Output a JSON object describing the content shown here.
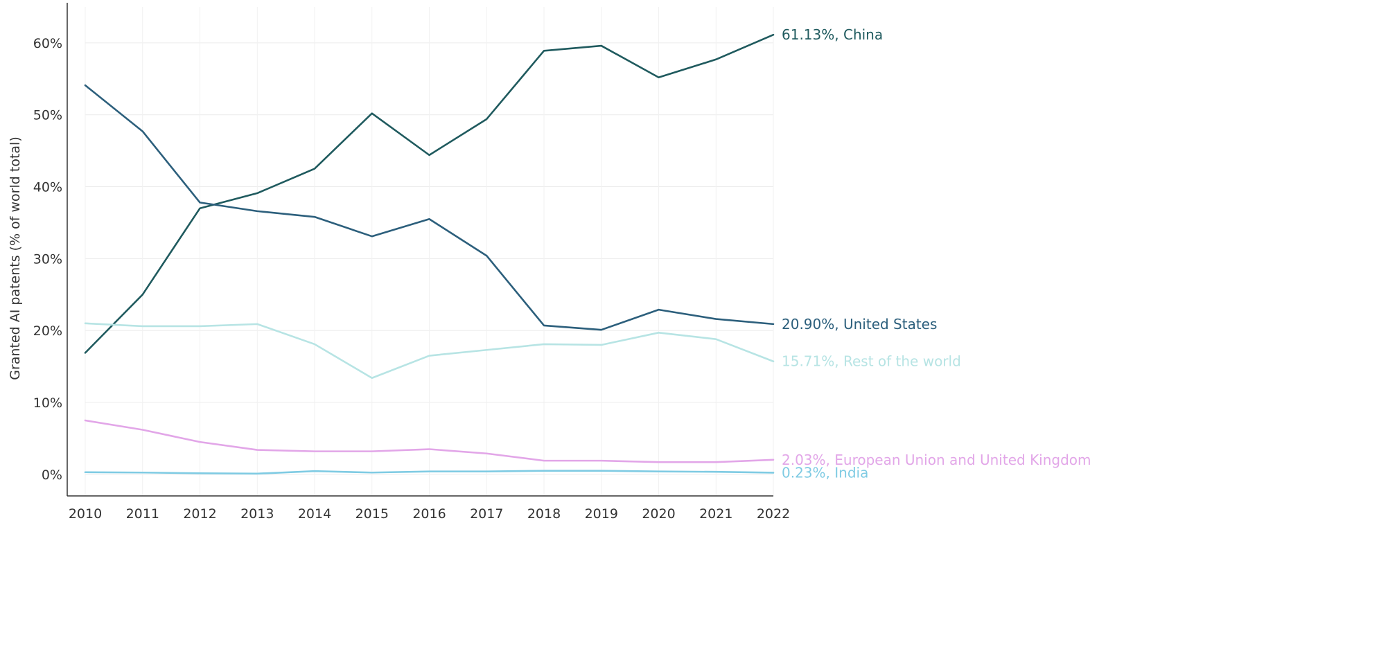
{
  "chart_data": {
    "type": "line",
    "ylabel": "Granted AI patents (% of world total)",
    "xlabel": "",
    "x": [
      "2010",
      "2011",
      "2012",
      "2013",
      "2014",
      "2015",
      "2016",
      "2017",
      "2018",
      "2019",
      "2020",
      "2021",
      "2022"
    ],
    "ylim": [
      -3,
      65
    ],
    "yticks": [
      0,
      10,
      20,
      30,
      40,
      50,
      60
    ],
    "ytick_labels": [
      "0%",
      "10%",
      "20%",
      "30%",
      "40%",
      "50%",
      "60%"
    ],
    "grid": "horizontal and vertical, light",
    "legend": "end-of-line labels on the right",
    "series": [
      {
        "name": "China",
        "end_label": "61.13%, China",
        "color": "#1f5a5e",
        "values": [
          16.9,
          25.0,
          37.0,
          39.1,
          42.5,
          50.2,
          44.4,
          49.4,
          58.9,
          59.6,
          55.2,
          57.7,
          61.13
        ]
      },
      {
        "name": "United States",
        "end_label": "20.90%, United States",
        "color": "#2c5f7c",
        "values": [
          54.1,
          47.7,
          37.8,
          36.6,
          35.8,
          33.1,
          35.5,
          30.4,
          20.7,
          20.1,
          22.9,
          21.6,
          20.9
        ]
      },
      {
        "name": "Rest of the world",
        "end_label": "15.71%, Rest of the world",
        "color": "#b7e4e4",
        "values": [
          21.0,
          20.6,
          20.6,
          20.9,
          18.1,
          13.4,
          16.5,
          17.3,
          18.1,
          18.0,
          19.7,
          18.8,
          15.71
        ]
      },
      {
        "name": "European Union and United Kingdom",
        "end_label": "2.03%, European Union and United Kingdom",
        "color": "#e2a6e8",
        "values": [
          7.5,
          6.2,
          4.5,
          3.4,
          3.2,
          3.2,
          3.5,
          2.9,
          1.9,
          1.9,
          1.7,
          1.7,
          2.03
        ]
      },
      {
        "name": "India",
        "end_label": "0.23%, India",
        "color": "#7fcbe3",
        "values": [
          0.3,
          0.25,
          0.15,
          0.1,
          0.45,
          0.25,
          0.4,
          0.4,
          0.5,
          0.5,
          0.4,
          0.35,
          0.23
        ]
      }
    ]
  }
}
